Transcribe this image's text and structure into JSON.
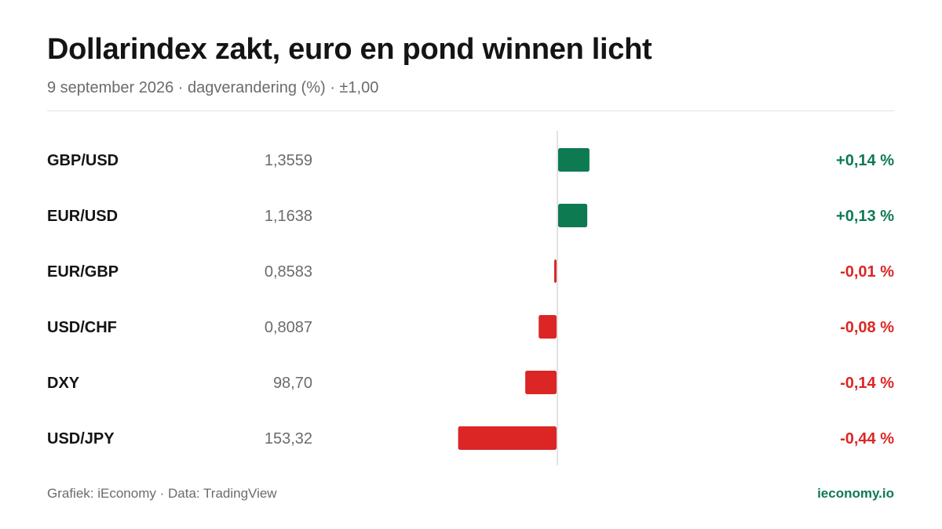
{
  "header": {
    "title": "Dollarindex zakt, euro en pond winnen licht",
    "subtitle": "9 september 2026 · dagverandering (%) · ±1,00"
  },
  "footer": {
    "source": "Grafiek: iEconomy · Data: TradingView",
    "brand": "ieconomy.io"
  },
  "colors": {
    "positive": "#0e7a52",
    "negative": "#dc2626",
    "axis": "#d9d9d9",
    "label": "#141414",
    "price": "#6b6b6b"
  },
  "chart_data": {
    "type": "bar",
    "orientation": "horizontal",
    "categories": [
      "GBP/USD",
      "EUR/USD",
      "EUR/GBP",
      "USD/CHF",
      "DXY",
      "USD/JPY"
    ],
    "prices": [
      "1,3559",
      "1,1638",
      "0,8583",
      "0,8087",
      "98,70",
      "153,32"
    ],
    "values": [
      0.14,
      0.13,
      -0.01,
      -0.08,
      -0.14,
      -0.44
    ],
    "value_labels": [
      "+0,14 %",
      "+0,13 %",
      "-0,01 %",
      "-0,08 %",
      "-0,14 %",
      "-0,44 %"
    ],
    "xlim": [
      -1.0,
      1.0
    ],
    "unit": "%",
    "grid": false,
    "legend": "none"
  }
}
